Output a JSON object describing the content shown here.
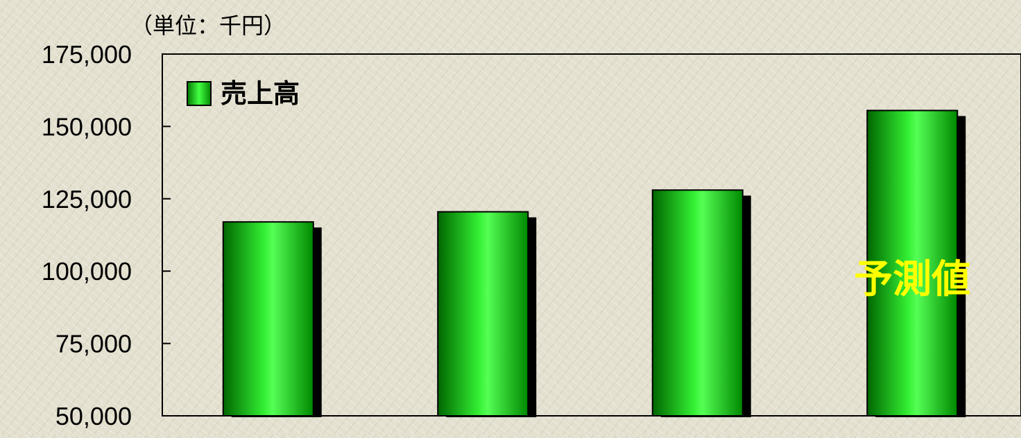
{
  "chart_data": {
    "type": "bar",
    "unit_label": "（単位：千円）",
    "legend": {
      "label": "売上高",
      "position": "top-left"
    },
    "categories": [
      "",
      "",
      "",
      ""
    ],
    "series": [
      {
        "name": "売上高",
        "values": [
          117000,
          120500,
          128000,
          155500
        ]
      }
    ],
    "ylim": [
      50000,
      175000
    ],
    "yticks": [
      "175,000",
      "150,000",
      "125,000",
      "100,000",
      "75,000",
      "50,000"
    ],
    "ytick_values": [
      175000,
      150000,
      125000,
      100000,
      75000,
      50000
    ],
    "grid": false,
    "annotation": {
      "text": "予測値",
      "target_index": 3
    },
    "colors": {
      "bar_edge": "#006600",
      "bar_mid": "#33ee33",
      "bar_highlight": "#66ff66",
      "bar_shadow": "#000000",
      "axis": "#000000",
      "annotation": "#ffff00"
    }
  }
}
